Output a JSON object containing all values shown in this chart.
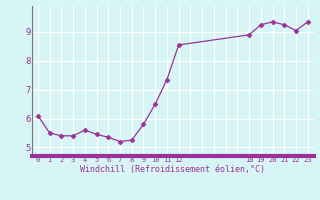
{
  "x": [
    0,
    1,
    2,
    3,
    4,
    5,
    6,
    7,
    8,
    9,
    10,
    11,
    12,
    18,
    19,
    20,
    21,
    22,
    23
  ],
  "y": [
    6.1,
    5.5,
    5.4,
    5.4,
    5.6,
    5.45,
    5.35,
    5.2,
    5.25,
    5.8,
    6.5,
    7.35,
    8.55,
    8.9,
    9.25,
    9.35,
    9.25,
    9.05,
    9.35
  ],
  "line_color": "#993399",
  "marker": "D",
  "marker_size": 2.5,
  "bg_color": "#d8f5f5",
  "grid_color": "#ffffff",
  "xlabel": "Windchill (Refroidissement éolien,°C)",
  "xlabel_color": "#993399",
  "tick_color": "#993399",
  "ylim": [
    4.7,
    9.9
  ],
  "yticks": [
    5,
    6,
    7,
    8,
    9
  ],
  "xtick_positions": [
    0,
    1,
    2,
    3,
    4,
    5,
    6,
    7,
    8,
    9,
    10,
    11,
    12,
    18,
    19,
    20,
    21,
    22,
    23
  ],
  "xtick_labels": [
    "0",
    "1",
    "2",
    "3",
    "4",
    "5",
    "6",
    "7",
    "8",
    "9",
    "10",
    "11",
    "12",
    "18",
    "19",
    "20",
    "21",
    "22",
    "23"
  ],
  "xlim": [
    -0.5,
    23.5
  ],
  "grid_xticks": [
    0,
    1,
    2,
    3,
    4,
    5,
    6,
    7,
    8,
    9,
    10,
    11,
    12,
    13,
    14,
    15,
    16,
    17,
    18,
    19,
    20,
    21,
    22,
    23
  ],
  "left_spine_color": "#777777",
  "bottom_bar_color": "#993399"
}
